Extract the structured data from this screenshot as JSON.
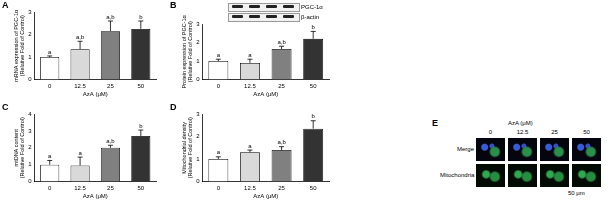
{
  "chart_data": [
    {
      "type": "bar",
      "label": "A",
      "y_label": [
        "mRNA expression of PGC-1α",
        "(Relative Fold of Control)"
      ],
      "x_label": "AzA (μM)",
      "categories": [
        "0",
        "12.5",
        "25",
        "50"
      ],
      "values": [
        1.0,
        1.35,
        2.15,
        2.25
      ],
      "errors": [
        0.05,
        0.35,
        0.45,
        0.35
      ],
      "annotations": [
        "a",
        "a,b",
        "a,b",
        "b"
      ],
      "colors": [
        "#ffffff",
        "#d9d9d9",
        "#808080",
        "#333333"
      ],
      "ylim": [
        0,
        3
      ],
      "yticks": [
        0,
        1,
        2,
        3
      ],
      "grid": false
    },
    {
      "type": "bar",
      "label": "B",
      "y_label": [
        "Protein expression of PGC-1α",
        "(Relative Fold of Control)"
      ],
      "x_label": "AzA (μM)",
      "categories": [
        "0",
        "12.5",
        "25",
        "50"
      ],
      "values": [
        1.0,
        0.9,
        1.65,
        2.2
      ],
      "errors": [
        0.1,
        0.2,
        0.15,
        0.4
      ],
      "annotations": [
        "a",
        "a",
        "a,b",
        "b"
      ],
      "blot_labels": [
        "PGC-1α",
        "β-actin"
      ],
      "colors": [
        "#ffffff",
        "#d9d9d9",
        "#808080",
        "#333333"
      ],
      "ylim": [
        0,
        3
      ],
      "yticks": [
        0,
        1,
        2,
        3
      ],
      "grid": false
    },
    {
      "type": "bar",
      "label": "C",
      "y_label": [
        "mtDNA content",
        "(Relative Fold of Control)"
      ],
      "x_label": "AzA (μM)",
      "categories": [
        "0",
        "12.5",
        "25",
        "50"
      ],
      "values": [
        1.0,
        0.95,
        2.0,
        2.7
      ],
      "errors": [
        0.25,
        0.5,
        0.15,
        0.35
      ],
      "annotations": [
        "a",
        "a",
        "a,b",
        "b"
      ],
      "colors": [
        "#ffffff",
        "#d9d9d9",
        "#808080",
        "#333333"
      ],
      "ylim": [
        0,
        4
      ],
      "yticks": [
        0,
        1,
        2,
        3,
        4
      ],
      "grid": false
    },
    {
      "type": "bar",
      "label": "D",
      "y_label": [
        "Mitochondrial density",
        "(Relative Fold of Control)"
      ],
      "x_label": "AzA (μM)",
      "categories": [
        "0",
        "12.5",
        "25",
        "50"
      ],
      "values": [
        1.0,
        1.3,
        1.4,
        2.35
      ],
      "errors": [
        0.1,
        0.1,
        0.15,
        0.35
      ],
      "annotations": [
        "a",
        "a",
        "a,b",
        "b"
      ],
      "colors": [
        "#ffffff",
        "#d9d9d9",
        "#808080",
        "#333333"
      ],
      "ylim": [
        0,
        3
      ],
      "yticks": [
        0,
        1,
        2,
        3
      ],
      "grid": false
    }
  ],
  "image_panel": {
    "label": "E",
    "x_label": "AzA (μM)",
    "columns": [
      "0",
      "12.5",
      "25",
      "50"
    ],
    "rows": [
      "Merge",
      "Mitochondria"
    ],
    "scale_bar": "50 μm"
  }
}
